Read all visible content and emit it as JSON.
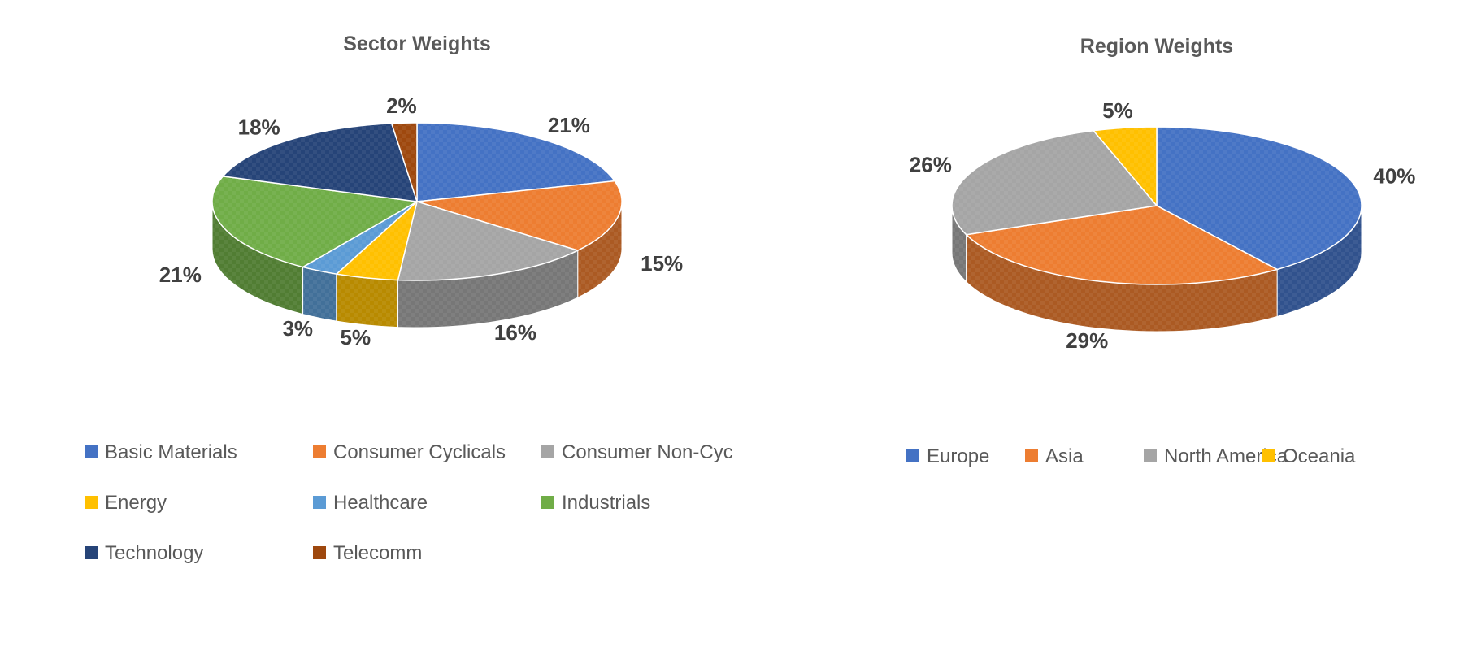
{
  "chart_data": [
    {
      "type": "pie",
      "title": "Sector Weights",
      "categories": [
        "Basic Materials",
        "Consumer Cyclicals",
        "Consumer Non-Cyc",
        "Energy",
        "Healthcare",
        "Industrials",
        "Technology",
        "Telecomm"
      ],
      "values": [
        21,
        15,
        16,
        5,
        3,
        21,
        18,
        2
      ],
      "value_labels": [
        "21%",
        "15%",
        "16%",
        "5%",
        "3%",
        "21%",
        "18%",
        "2%"
      ],
      "colors": [
        "#4472C4",
        "#ED7D31",
        "#A5A5A5",
        "#FFC000",
        "#5B9BD5",
        "#70AD47",
        "#264478",
        "#9E480E"
      ],
      "style": "3d",
      "legend": "bottom"
    },
    {
      "type": "pie",
      "title": "Region Weights",
      "categories": [
        "Europe",
        "Asia",
        "North America",
        "Oceania"
      ],
      "values": [
        40,
        29,
        26,
        5
      ],
      "value_labels": [
        "40%",
        "29%",
        "26%",
        "5%"
      ],
      "colors": [
        "#4472C4",
        "#ED7D31",
        "#A5A5A5",
        "#FFC000"
      ],
      "style": "3d",
      "legend": "bottom"
    }
  ]
}
